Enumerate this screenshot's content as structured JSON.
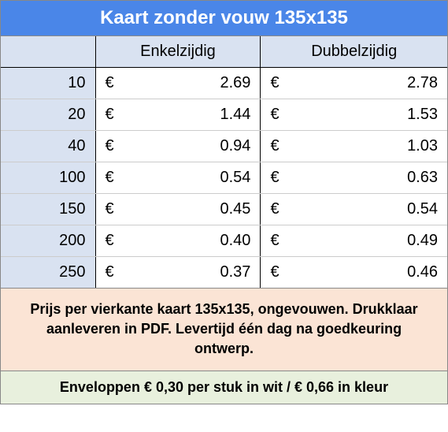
{
  "title": "Kaart zonder vouw 135x135",
  "columns": {
    "qty": "",
    "single": "Enkelzijdig",
    "double": "Dubbelzijdig"
  },
  "currency": "€",
  "rows": [
    {
      "qty": "10",
      "single": "2.69",
      "double": "2.78"
    },
    {
      "qty": "20",
      "single": "1.44",
      "double": "1.53"
    },
    {
      "qty": "40",
      "single": "0.94",
      "double": "1.03"
    },
    {
      "qty": "100",
      "single": "0.54",
      "double": "0.63"
    },
    {
      "qty": "150",
      "single": "0.45",
      "double": "0.54"
    },
    {
      "qty": "200",
      "single": "0.40",
      "double": "0.49"
    },
    {
      "qty": "250",
      "single": "0.37",
      "double": "0.46"
    }
  ],
  "info_text": "Prijs per vierkante kaart 135x135, ongevouwen. Drukklaar aanleveren in PDF. Levertijd één dag na goedkeuring ontwerp.",
  "envelope_text": "Enveloppen € 0,30 per stuk in wit / € 0,66 in kleur",
  "colors": {
    "title_bg": "#4a86e8",
    "title_fg": "#ffffff",
    "header_bg": "#d9e2f1",
    "qty_bg": "#d9e2f1",
    "info_bg": "#fbe4d5",
    "envelope_bg": "#e8f0dd",
    "border": "#888888",
    "row_border": "#cccccc"
  },
  "typography": {
    "title_fontsize": 24,
    "table_fontsize": 20,
    "info_fontsize": 18,
    "envelope_fontsize": 18,
    "font_family": "Arial"
  }
}
